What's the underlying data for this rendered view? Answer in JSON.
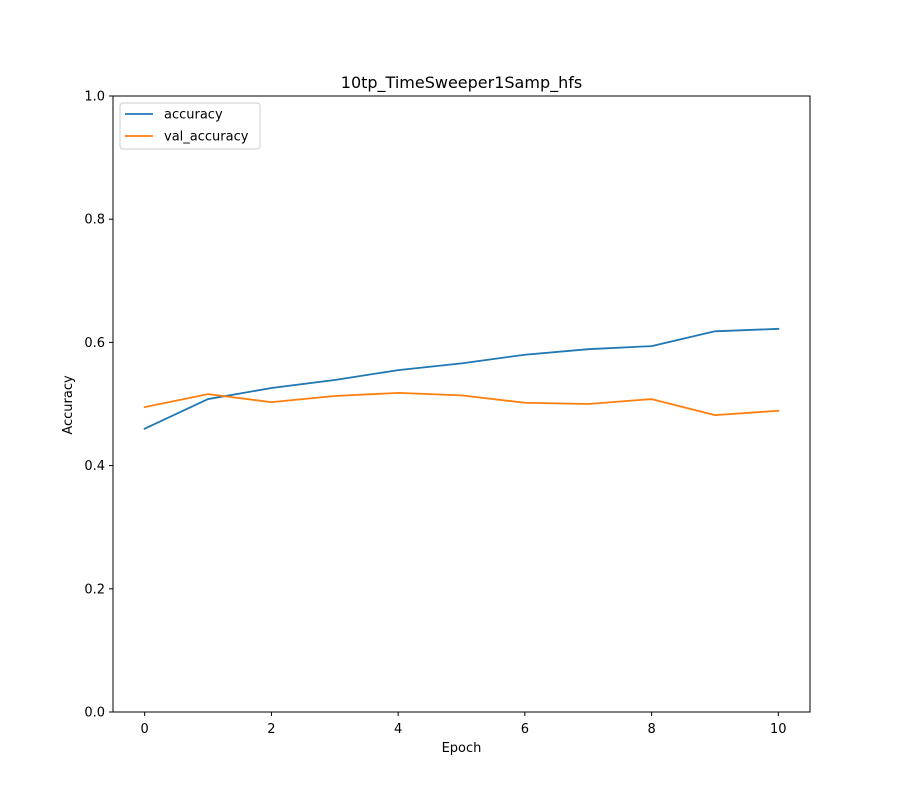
{
  "chart_data": {
    "type": "line",
    "title": "10tp_TimeSweeper1Samp_hfs",
    "xlabel": "Epoch",
    "ylabel": "Accuracy",
    "xlim": [
      -0.5,
      10.5
    ],
    "ylim": [
      0.0,
      1.0
    ],
    "xticks": [
      0,
      2,
      4,
      6,
      8,
      10
    ],
    "yticks": [
      0.0,
      0.2,
      0.4,
      0.6,
      0.8,
      1.0
    ],
    "xtick_labels": [
      "0",
      "2",
      "4",
      "6",
      "8",
      "10"
    ],
    "ytick_labels": [
      "0.0",
      "0.2",
      "0.4",
      "0.6",
      "0.8",
      "1.0"
    ],
    "grid": false,
    "legend_position": "top-left",
    "x": [
      0,
      1,
      2,
      3,
      4,
      5,
      6,
      7,
      8,
      9,
      10
    ],
    "series": [
      {
        "name": "accuracy",
        "color": "#1f77b4",
        "values": [
          0.46,
          0.508,
          0.526,
          0.539,
          0.555,
          0.566,
          0.58,
          0.589,
          0.594,
          0.618,
          0.622
        ]
      },
      {
        "name": "val_accuracy",
        "color": "#ff7f0e",
        "values": [
          0.495,
          0.516,
          0.503,
          0.513,
          0.518,
          0.514,
          0.502,
          0.5,
          0.508,
          0.482,
          0.489
        ]
      }
    ]
  }
}
